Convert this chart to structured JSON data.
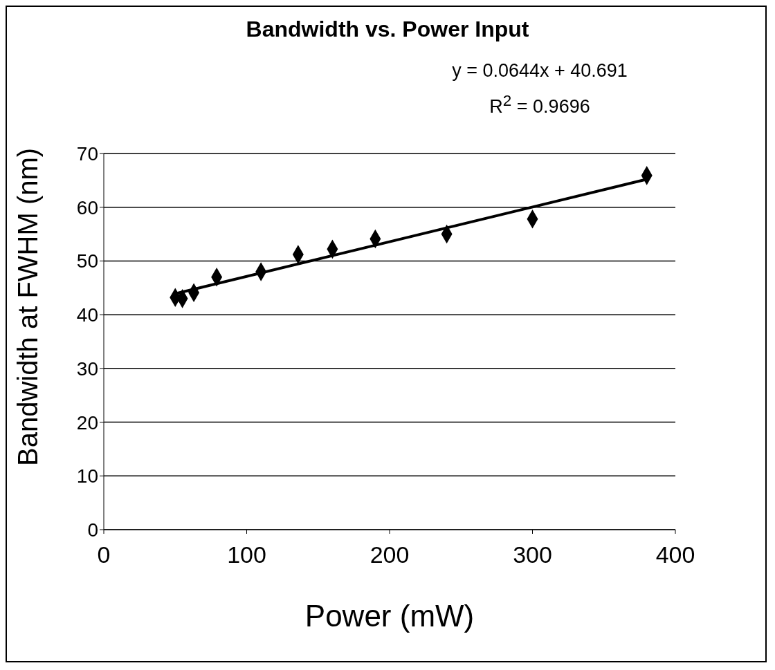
{
  "chart_data": {
    "type": "scatter",
    "title": "Bandwidth vs. Power Input",
    "xlabel": "Power (mW)",
    "ylabel": "Bandwidth at FWHM (nm)",
    "annotations": [
      "y = 0.0644x + 40.691",
      "R$^{2}$ = 0.9696"
    ],
    "x": [
      50,
      55,
      63,
      79,
      110,
      136,
      160,
      190,
      240,
      300,
      380
    ],
    "series": [
      {
        "color": "#000000",
        "marker": "diamond",
        "values": [
          43.2,
          43,
          44.1,
          47,
          48,
          51.2,
          52.2,
          54.1,
          55,
          57.8,
          65.9
        ]
      },
      {
        "type": "line",
        "color": "#000000",
        "x": [
          50,
          380
        ],
        "values": [
          43.9,
          65.2
        ]
      }
    ],
    "xlim": [
      0,
      400
    ],
    "xticks": [
      0,
      100,
      200,
      300,
      400
    ],
    "ylim": [
      0,
      70
    ],
    "yticks": [
      0,
      10,
      20,
      30,
      40,
      50,
      60,
      70
    ],
    "grid": "y"
  }
}
